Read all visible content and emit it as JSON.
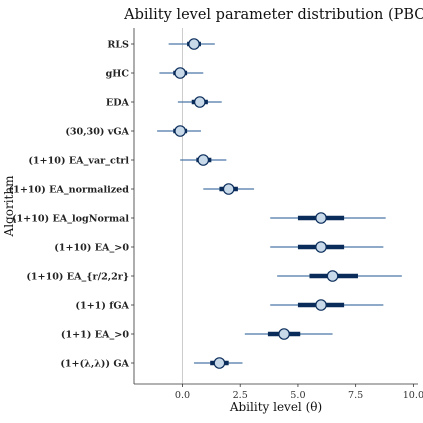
{
  "chart_data": {
    "type": "scatter",
    "title": "Ability level parameter distribution (PBO)",
    "xlabel": "Ability level (θ)",
    "ylabel": "Algorithm",
    "xlim": [
      -2.1,
      10.2
    ],
    "xticks": [
      0.0,
      2.5,
      5.0,
      7.5,
      10.0
    ],
    "xtick_labels": [
      "0.0",
      "2.5",
      "5.0",
      "7.5",
      "10.0"
    ],
    "reference_line": 0.0,
    "grid": false,
    "colors": {
      "inner_interval": "#0a2c5a",
      "outer_interval": "#4a78a8",
      "point_fill": "#c8d9ea",
      "point_stroke": "#0a2c5a",
      "reference_line": "#cccccc"
    },
    "categories": [
      "RLS",
      "gHC",
      "EDA",
      "(30,30) vGA",
      "(1+10) EA_var_ctrl",
      "(1+10) EA_normalized",
      "(1+10) EA_logNormal",
      "(1+10) EA_>0",
      "(1+10) EA_{r/2,2r}",
      "(1+1) fGA",
      "(1+1) EA_>0",
      "(1+(λ,λ)) GA"
    ],
    "points": [
      {
        "median": 0.5,
        "inner": [
          0.2,
          0.8
        ],
        "outer": [
          -0.6,
          1.4
        ]
      },
      {
        "median": -0.1,
        "inner": [
          -0.4,
          0.2
        ],
        "outer": [
          -1.0,
          0.9
        ]
      },
      {
        "median": 0.75,
        "inner": [
          0.4,
          1.1
        ],
        "outer": [
          -0.2,
          1.7
        ]
      },
      {
        "median": -0.1,
        "inner": [
          -0.4,
          0.2
        ],
        "outer": [
          -1.1,
          0.8
        ]
      },
      {
        "median": 0.9,
        "inner": [
          0.6,
          1.25
        ],
        "outer": [
          -0.1,
          1.9
        ]
      },
      {
        "median": 2.0,
        "inner": [
          1.6,
          2.4
        ],
        "outer": [
          0.9,
          3.1
        ]
      },
      {
        "median": 6.0,
        "inner": [
          5.0,
          7.0
        ],
        "outer": [
          3.8,
          8.8
        ]
      },
      {
        "median": 6.0,
        "inner": [
          5.0,
          7.0
        ],
        "outer": [
          3.8,
          8.7
        ]
      },
      {
        "median": 6.5,
        "inner": [
          5.5,
          7.6
        ],
        "outer": [
          4.1,
          9.5
        ]
      },
      {
        "median": 6.0,
        "inner": [
          5.0,
          7.0
        ],
        "outer": [
          3.8,
          8.7
        ]
      },
      {
        "median": 4.4,
        "inner": [
          3.7,
          5.1
        ],
        "outer": [
          2.7,
          6.5
        ]
      },
      {
        "median": 1.6,
        "inner": [
          1.2,
          2.0
        ],
        "outer": [
          0.5,
          2.6
        ]
      }
    ]
  }
}
